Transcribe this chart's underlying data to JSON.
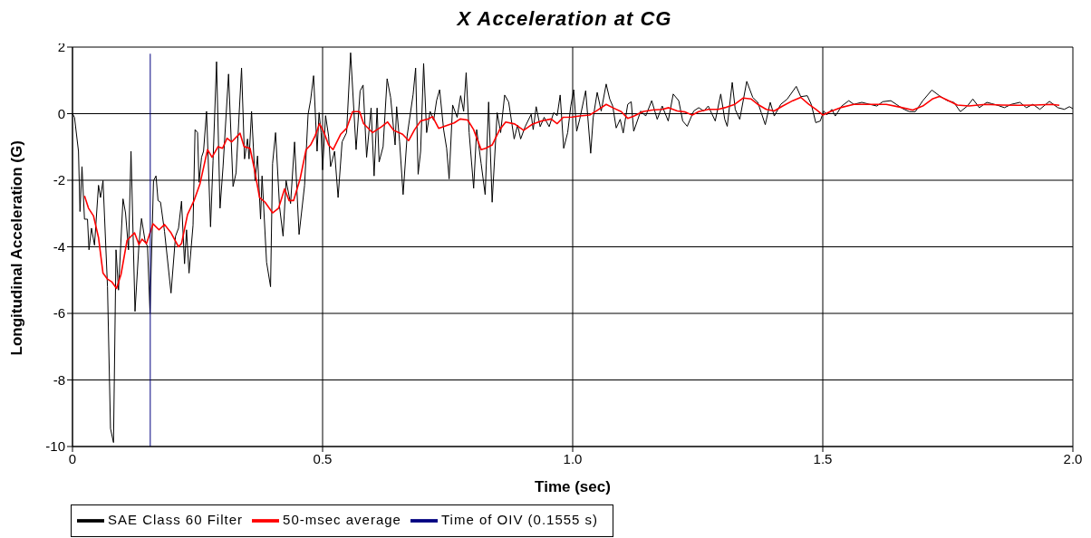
{
  "chart_data": {
    "type": "line",
    "title": "X Acceleration at CG",
    "xlabel": "Time (sec)",
    "ylabel": "Longitudinal Acceleration (G)",
    "xlim": [
      0,
      2
    ],
    "xticks": [
      0,
      0.5,
      {
        "value": 1,
        "label": "1.0"
      },
      1.5,
      {
        "value": 2,
        "label": "2.0"
      }
    ],
    "ylim": [
      -10,
      2
    ],
    "yticks": [
      -10,
      -8,
      -6,
      -4,
      -2,
      0,
      2
    ],
    "grid": true,
    "legend": "bottom",
    "series": [
      {
        "name": "Time of OIV (0.1555 s)",
        "color": "#000080",
        "x": [
          0.1555,
          0.1555
        ],
        "values": [
          -10,
          1.8
        ]
      },
      {
        "name": "SAE Class 60 Filter",
        "color": "#000000",
        "x": [
          0,
          0.004,
          0.012,
          0.015,
          0.019,
          0.024,
          0.03,
          0.033,
          0.038,
          0.044,
          0.052,
          0.056,
          0.061,
          0.07,
          0.076,
          0.082,
          0.087,
          0.092,
          0.101,
          0.106,
          0.112,
          0.117,
          0.125,
          0.133,
          0.138,
          0.145,
          0.15,
          0.155,
          0.162,
          0.167,
          0.171,
          0.176,
          0.184,
          0.197,
          0.206,
          0.212,
          0.218,
          0.224,
          0.228,
          0.233,
          0.241,
          0.245,
          0.25,
          0.253,
          0.258,
          0.262,
          0.268,
          0.276,
          0.281,
          0.288,
          0.295,
          0.301,
          0.312,
          0.321,
          0.327,
          0.338,
          0.344,
          0.35,
          0.353,
          0.358,
          0.365,
          0.37,
          0.376,
          0.379,
          0.388,
          0.396,
          0.4,
          0.406,
          0.414,
          0.421,
          0.427,
          0.436,
          0.444,
          0.453,
          0.464,
          0.471,
          0.476,
          0.482,
          0.489,
          0.493,
          0.497,
          0.5,
          0.506,
          0.512,
          0.516,
          0.524,
          0.531,
          0.539,
          0.548,
          0.556,
          0.567,
          0.575,
          0.581,
          0.588,
          0.597,
          0.603,
          0.609,
          0.613,
          0.621,
          0.629,
          0.636,
          0.645,
          0.648,
          0.654,
          0.661,
          0.669,
          0.681,
          0.686,
          0.691,
          0.696,
          0.702,
          0.708,
          0.715,
          0.722,
          0.728,
          0.734,
          0.742,
          0.748,
          0.753,
          0.76,
          0.769,
          0.776,
          0.782,
          0.787,
          0.793,
          0.802,
          0.808,
          0.817,
          0.825,
          0.832,
          0.839,
          0.849,
          0.856,
          0.864,
          0.872,
          0.883,
          0.89,
          0.896,
          0.905,
          0.917,
          0.921,
          0.927,
          0.935,
          0.943,
          0.953,
          0.962,
          0.969,
          0.975,
          0.982,
          0.99,
          0.996,
          1.002,
          1.008,
          1.014,
          1.026,
          1.036,
          1.041,
          1.049,
          1.057,
          1.067,
          1.074,
          1.08,
          1.087,
          1.095,
          1.101,
          1.11,
          1.117,
          1.122,
          1.136,
          1.146,
          1.158,
          1.169,
          1.179,
          1.191,
          1.201,
          1.212,
          1.22,
          1.229,
          1.242,
          1.252,
          1.262,
          1.271,
          1.285,
          1.296,
          1.304,
          1.309,
          1.319,
          1.325,
          1.334,
          1.348,
          1.36,
          1.37,
          1.377,
          1.385,
          1.395,
          1.403,
          1.416,
          1.429,
          1.447,
          1.456,
          1.469,
          1.477,
          1.486,
          1.495,
          1.502,
          1.508,
          1.518,
          1.525,
          1.538,
          1.552,
          1.562,
          1.578,
          1.594,
          1.608,
          1.62,
          1.636,
          1.647,
          1.66,
          1.673,
          1.685,
          1.7,
          1.718,
          1.733,
          1.749,
          1.762,
          1.775,
          1.789,
          1.8,
          1.813,
          1.828,
          1.838,
          1.85,
          1.863,
          1.877,
          1.894,
          1.907,
          1.92,
          1.934,
          1.953,
          1.97,
          1.983,
          1.993,
          2.0
        ],
        "values": [
          0,
          -0.11,
          -1.13,
          -2.94,
          -1.59,
          -3.17,
          -3.17,
          -4.09,
          -3.44,
          -3.95,
          -2.15,
          -2.52,
          -2.01,
          -5.2,
          -9.46,
          -9.88,
          -4.09,
          -5.3,
          -2.56,
          -2.98,
          -4.09,
          -1.13,
          -5.94,
          -3.9,
          -3.15,
          -3.81,
          -4.0,
          -5.99,
          -2.01,
          -1.87,
          -2.61,
          -2.66,
          -3.54,
          -5.39,
          -3.68,
          -3.44,
          -2.63,
          -4.51,
          -3.49,
          -4.79,
          -3.35,
          -0.48,
          -0.57,
          -2.06,
          -1.31,
          -1.13,
          0.07,
          -3.4,
          -1.41,
          1.56,
          -2.84,
          -1.59,
          1.19,
          -2.19,
          -1.78,
          1.37,
          -1.36,
          -0.76,
          -1.36,
          0.07,
          -2.01,
          -1.27,
          -3.17,
          -1.87,
          -4.46,
          -5.2,
          -1.5,
          -0.57,
          -2.8,
          -3.68,
          -2.01,
          -2.7,
          -0.85,
          -3.63,
          -2.15,
          -0.02,
          0.4,
          1.14,
          -1.13,
          0.03,
          -0.57,
          -1.69,
          -0.06,
          -0.67,
          -1.59,
          -1.13,
          -2.52,
          -0.85,
          -0.57,
          1.83,
          -1.08,
          0.68,
          0.86,
          -1.31,
          0.17,
          -1.87,
          0.17,
          -1.45,
          -0.99,
          1.05,
          0.49,
          -0.94,
          0.21,
          -0.85,
          -2.43,
          -0.67,
          0.58,
          1.37,
          -1.82,
          -1.13,
          1.51,
          -0.57,
          0.07,
          -0.2,
          0.4,
          0.72,
          -0.48,
          -1.04,
          -1.96,
          0.26,
          -0.11,
          0.54,
          0.07,
          1.23,
          -0.57,
          -2.24,
          -0.48,
          -1.5,
          -2.43,
          0.35,
          -2.66,
          0.03,
          -0.57,
          0.56,
          0.35,
          -0.76,
          -0.34,
          -0.76,
          -0.39,
          -0.02,
          -0.48,
          0.21,
          -0.39,
          -0.11,
          -0.39,
          0.03,
          -0.06,
          0.56,
          -1.04,
          -0.57,
          0.21,
          0.72,
          -0.53,
          -0.17,
          0.69,
          -1.19,
          -0.12,
          0.64,
          0.08,
          0.89,
          0.44,
          0.23,
          -0.43,
          -0.17,
          -0.58,
          0.28,
          0.36,
          -0.53,
          0.08,
          -0.07,
          0.39,
          -0.17,
          0.23,
          -0.22,
          0.59,
          0.39,
          -0.22,
          -0.38,
          0.08,
          0.18,
          0.08,
          0.23,
          -0.22,
          0.59,
          -0.17,
          -0.38,
          0.94,
          0.13,
          -0.17,
          0.97,
          0.49,
          0.34,
          0.03,
          -0.33,
          0.34,
          -0.07,
          0.28,
          0.44,
          0.82,
          0.51,
          0.54,
          0.28,
          -0.27,
          -0.22,
          0.08,
          -0.04,
          0.13,
          -0.07,
          0.23,
          0.39,
          0.28,
          0.34,
          0.28,
          0.23,
          0.36,
          0.39,
          0.28,
          0.15,
          0.06,
          0.06,
          0.39,
          0.71,
          0.54,
          0.39,
          0.34,
          0.06,
          0.23,
          0.44,
          0.18,
          0.34,
          0.3,
          0.25,
          0.18,
          0.28,
          0.34,
          0.18,
          0.28,
          0.13,
          0.37,
          0.18,
          0.13,
          0.21,
          0.15
        ]
      },
      {
        "name": "50-msec average",
        "color": "#ff0000",
        "x": [
          0.024,
          0.032,
          0.042,
          0.052,
          0.061,
          0.07,
          0.079,
          0.088,
          0.097,
          0.109,
          0.124,
          0.133,
          0.139,
          0.148,
          0.161,
          0.173,
          0.184,
          0.197,
          0.212,
          0.218,
          0.23,
          0.243,
          0.255,
          0.27,
          0.279,
          0.291,
          0.3,
          0.309,
          0.318,
          0.335,
          0.343,
          0.355,
          0.364,
          0.374,
          0.385,
          0.4,
          0.412,
          0.424,
          0.433,
          0.442,
          0.455,
          0.467,
          0.476,
          0.485,
          0.494,
          0.503,
          0.512,
          0.521,
          0.536,
          0.548,
          0.56,
          0.574,
          0.582,
          0.6,
          0.618,
          0.63,
          0.642,
          0.66,
          0.672,
          0.684,
          0.696,
          0.711,
          0.72,
          0.732,
          0.751,
          0.763,
          0.775,
          0.79,
          0.802,
          0.817,
          0.826,
          0.839,
          0.854,
          0.866,
          0.884,
          0.902,
          0.92,
          0.938,
          0.957,
          0.969,
          0.981,
          0.999,
          1.014,
          1.034,
          1.047,
          1.067,
          1.08,
          1.097,
          1.11,
          1.123,
          1.14,
          1.159,
          1.179,
          1.192,
          1.209,
          1.225,
          1.239,
          1.252,
          1.271,
          1.291,
          1.304,
          1.324,
          1.341,
          1.357,
          1.37,
          1.387,
          1.403,
          1.42,
          1.44,
          1.456,
          1.472,
          1.486,
          1.5,
          1.515,
          1.535,
          1.562,
          1.594,
          1.627,
          1.653,
          1.68,
          1.7,
          1.719,
          1.733,
          1.749,
          1.769,
          1.792,
          1.825,
          1.858,
          1.89,
          1.924,
          1.957,
          1.973
        ],
        "values": [
          -2.47,
          -2.84,
          -3.07,
          -3.72,
          -4.79,
          -4.97,
          -5.06,
          -5.25,
          -4.83,
          -3.81,
          -3.58,
          -3.93,
          -3.77,
          -3.9,
          -3.31,
          -3.49,
          -3.33,
          -3.58,
          -4.0,
          -3.9,
          -3.03,
          -2.61,
          -2.1,
          -1.08,
          -1.31,
          -0.99,
          -1.04,
          -0.74,
          -0.85,
          -0.59,
          -0.99,
          -1.04,
          -1.69,
          -2.52,
          -2.66,
          -2.98,
          -2.84,
          -2.26,
          -2.61,
          -2.61,
          -1.96,
          -1.08,
          -0.94,
          -0.67,
          -0.3,
          -0.57,
          -0.94,
          -1.08,
          -0.62,
          -0.44,
          0.06,
          0.06,
          -0.3,
          -0.57,
          -0.39,
          -0.25,
          -0.5,
          -0.62,
          -0.81,
          -0.48,
          -0.22,
          -0.16,
          -0.09,
          -0.44,
          -0.34,
          -0.28,
          -0.16,
          -0.19,
          -0.48,
          -1.08,
          -1.04,
          -0.94,
          -0.48,
          -0.25,
          -0.31,
          -0.5,
          -0.31,
          -0.22,
          -0.16,
          -0.3,
          -0.11,
          -0.1,
          -0.07,
          -0.04,
          0.08,
          0.28,
          0.18,
          0.06,
          -0.14,
          -0.07,
          0.06,
          0.11,
          0.13,
          0.18,
          0.08,
          0.05,
          -0.04,
          0.06,
          0.13,
          0.13,
          0.18,
          0.28,
          0.47,
          0.44,
          0.28,
          0.13,
          0.08,
          0.23,
          0.39,
          0.49,
          0.28,
          0.13,
          -0.04,
          0.06,
          0.18,
          0.28,
          0.28,
          0.28,
          0.2,
          0.11,
          0.23,
          0.44,
          0.52,
          0.41,
          0.26,
          0.23,
          0.28,
          0.26,
          0.25,
          0.26,
          0.28,
          0.25
        ]
      }
    ]
  }
}
